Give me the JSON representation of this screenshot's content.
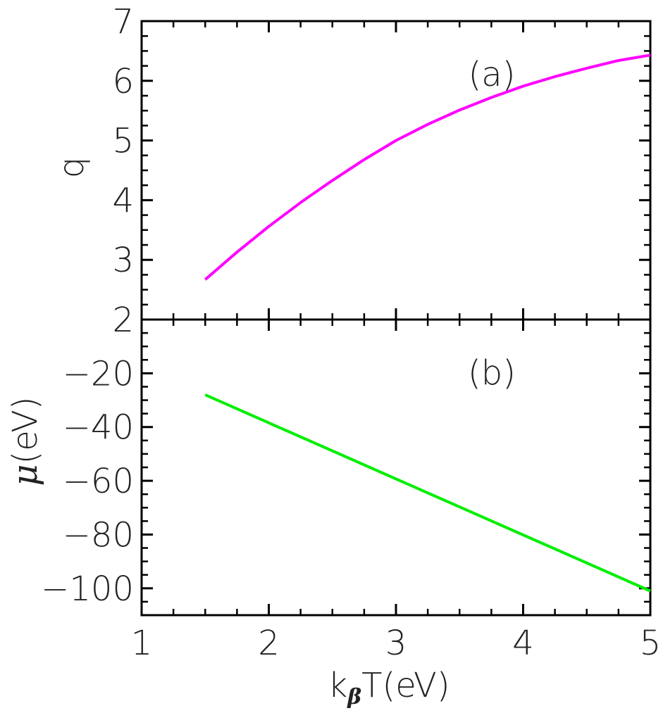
{
  "chart_data": [
    {
      "type": "line",
      "panel_label": "(a)",
      "title": "",
      "xlabel": "",
      "ylabel": "q",
      "xlim": [
        1,
        5
      ],
      "ylim": [
        2,
        7
      ],
      "xticks": [
        1,
        2,
        3,
        4,
        5
      ],
      "yticks": [
        2,
        3,
        4,
        5,
        6,
        7
      ],
      "ytick_labels": [
        "2",
        "3",
        "4",
        "5",
        "6",
        "7"
      ],
      "grid": false,
      "series": [
        {
          "color": "#ff00ff",
          "x": [
            1.5,
            1.75,
            2.0,
            2.25,
            2.5,
            2.75,
            3.0,
            3.25,
            3.5,
            3.75,
            4.0,
            4.25,
            4.5,
            4.75,
            5.0
          ],
          "y": [
            2.67,
            3.13,
            3.56,
            3.96,
            4.33,
            4.68,
            5.0,
            5.27,
            5.51,
            5.72,
            5.91,
            6.07,
            6.21,
            6.34,
            6.43
          ]
        }
      ]
    },
    {
      "type": "line",
      "panel_label": "(b)",
      "title": "",
      "xlabel_prefix": "k",
      "xlabel_sub": "β",
      "xlabel_suffix": "T(eV)",
      "ylabel_symbol": "μ",
      "ylabel_unit": "(eV)",
      "xlim": [
        1,
        5
      ],
      "ylim": [
        -110,
        0
      ],
      "xticks": [
        1,
        2,
        3,
        4,
        5
      ],
      "xtick_labels": [
        "1",
        "2",
        "3",
        "4",
        "5"
      ],
      "yticks": [
        -100,
        -80,
        -60,
        -40,
        -20
      ],
      "ytick_labels": [
        "−100",
        "−80",
        "−60",
        "−40",
        "−20"
      ],
      "grid": false,
      "series": [
        {
          "color": "#00ee00",
          "x": [
            1.5,
            5.0
          ],
          "y": [
            -28,
            -101
          ]
        }
      ]
    }
  ]
}
